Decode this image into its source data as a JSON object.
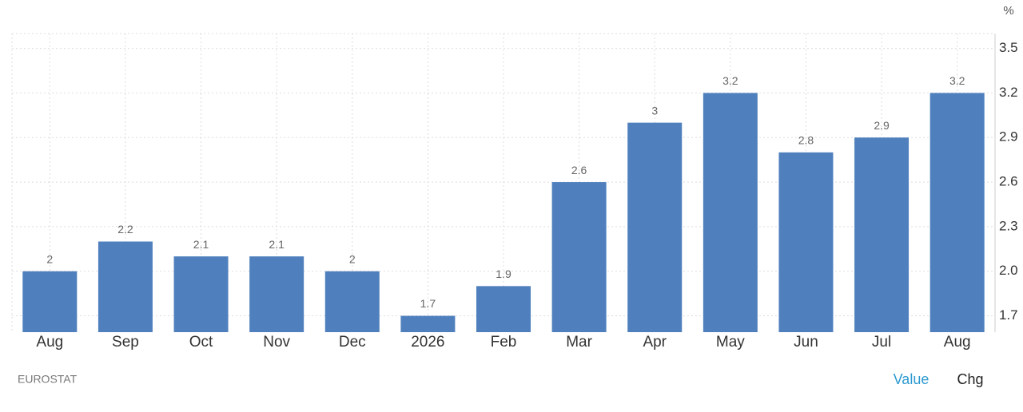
{
  "chart_data": {
    "type": "bar",
    "unit": "%",
    "categories": [
      "Aug",
      "Sep",
      "Oct",
      "Nov",
      "Dec",
      "2026",
      "Feb",
      "Mar",
      "Apr",
      "May",
      "Jun",
      "Jul",
      "Aug"
    ],
    "values": [
      2,
      2.2,
      2.1,
      2.1,
      2,
      1.7,
      1.9,
      2.6,
      3,
      3.2,
      2.8,
      2.9,
      3.2
    ],
    "color": "#4f80bd",
    "ylim": [
      1.59,
      3.6
    ],
    "yticks": [
      1.7,
      {
        "value": 2,
        "label": "2.0"
      },
      2.3,
      2.6,
      2.9,
      3.2,
      3.5
    ],
    "grid": true,
    "source": "EUROSTAT",
    "tabs": [
      "Value",
      "Chg"
    ]
  }
}
